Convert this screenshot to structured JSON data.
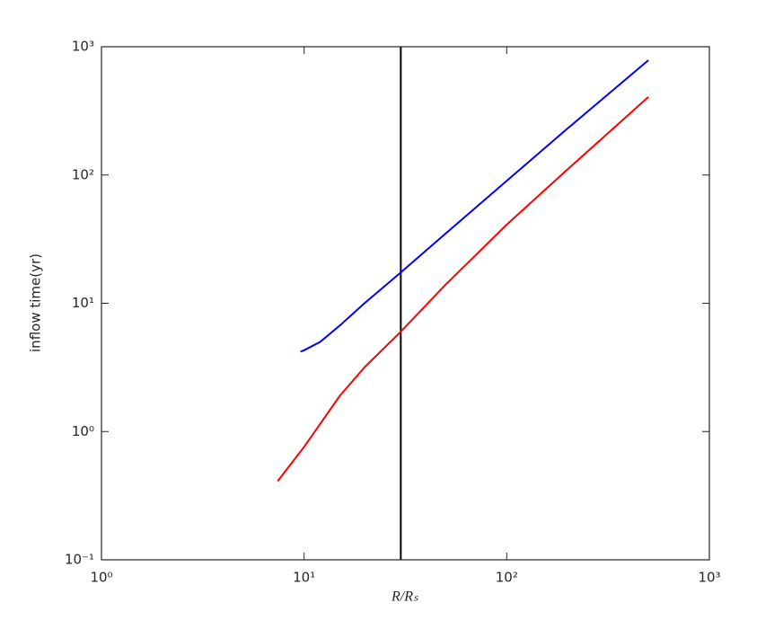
{
  "chart_data": {
    "type": "line",
    "xlabel": "R/Rₛ",
    "ylabel": "inflow time(yr)",
    "xscale": "log",
    "yscale": "log",
    "xlim": [
      1,
      1000
    ],
    "ylim": [
      0.1,
      1000
    ],
    "xticks": [
      {
        "value": 1,
        "label": "10⁰"
      },
      {
        "value": 10,
        "label": "10¹"
      },
      {
        "value": 100,
        "label": "10²"
      },
      {
        "value": 1000,
        "label": "10³"
      }
    ],
    "yticks": [
      {
        "value": 0.1,
        "label": "10⁻¹"
      },
      {
        "value": 1,
        "label": "10⁰"
      },
      {
        "value": 10,
        "label": "10¹"
      },
      {
        "value": 100,
        "label": "10²"
      },
      {
        "value": 1000,
        "label": "10³"
      }
    ],
    "vlines": [
      {
        "x": 30,
        "color": "#000000"
      }
    ],
    "series": [
      {
        "color": "#0000ff",
        "x": [
          9.6,
          10,
          12,
          15,
          20,
          30,
          50,
          100,
          200,
          500
        ],
        "values": [
          4.2,
          4.3,
          5.0,
          6.7,
          10.1,
          17.4,
          35,
          90,
          231,
          785
        ]
      },
      {
        "color": "#ff0000",
        "x": [
          7.4,
          10,
          15,
          20,
          30,
          50,
          100,
          200,
          500
        ],
        "values": [
          0.41,
          0.76,
          1.9,
          3.2,
          6.0,
          14,
          41,
          111,
          406
        ]
      }
    ]
  }
}
